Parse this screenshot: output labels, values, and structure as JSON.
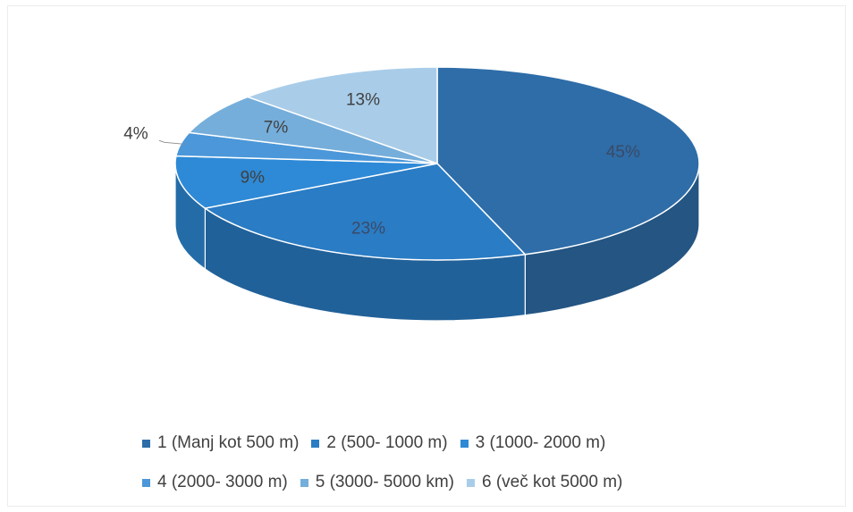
{
  "chart_data": {
    "type": "pie",
    "title": "",
    "categories": [
      "1 (Manj kot 500 m)",
      "2 (500- 1000 m)",
      "3 (1000- 2000 m)",
      "4 (2000- 3000 m)",
      "5 (3000- 5000 km)",
      "6 (več kot 5000 m)"
    ],
    "values": [
      45,
      23,
      9,
      4,
      7,
      13
    ],
    "labels": [
      "45%",
      "23%",
      "9%",
      "4%",
      "7%",
      "13%"
    ],
    "colors": [
      "#2e6da8",
      "#2a7cc4",
      "#2e8ad6",
      "#4b97d9",
      "#75aedb",
      "#a9cde9"
    ],
    "legend_position": "bottom",
    "style": "3d-pie"
  }
}
